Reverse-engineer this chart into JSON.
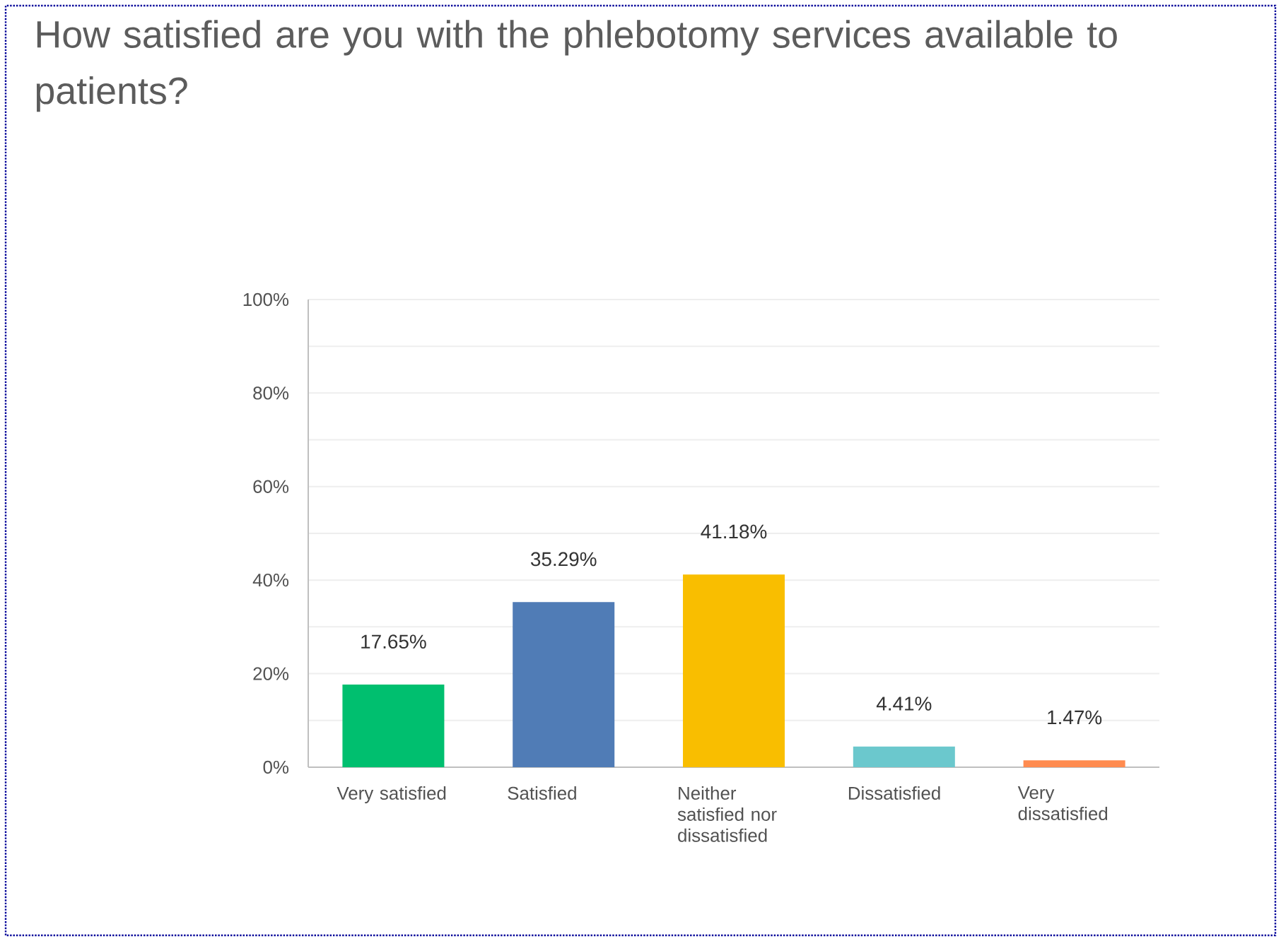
{
  "chart_data": {
    "type": "bar",
    "title": "How satisfied are you with the phlebotomy services available to patients?",
    "categories": [
      "Very satisfied",
      "Satisfied",
      "Neither satisfied nor dissatisfied",
      "Dissatisfied",
      "Very dissatisfied"
    ],
    "values": [
      17.65,
      35.29,
      41.18,
      4.41,
      1.47
    ],
    "colors": [
      "#00bf6f",
      "#507cb6",
      "#f9be00",
      "#6bc8cd",
      "#ff8b4f"
    ],
    "value_labels": [
      "17.65%",
      "35.29%",
      "41.18%",
      "4.41%",
      "1.47%"
    ],
    "ylim": [
      0,
      100
    ],
    "yticks": [
      {
        "value": 0,
        "label": "0%"
      },
      {
        "value": 10,
        "label": null
      },
      {
        "value": 20,
        "label": "20%"
      },
      {
        "value": 30,
        "label": null
      },
      {
        "value": 40,
        "label": "40%"
      },
      {
        "value": 50,
        "label": null
      },
      {
        "value": 60,
        "label": "60%"
      },
      {
        "value": 70,
        "label": null
      },
      {
        "value": 80,
        "label": "80%"
      },
      {
        "value": 90,
        "label": null
      },
      {
        "value": 100,
        "label": "100%"
      }
    ],
    "grid": "y"
  }
}
